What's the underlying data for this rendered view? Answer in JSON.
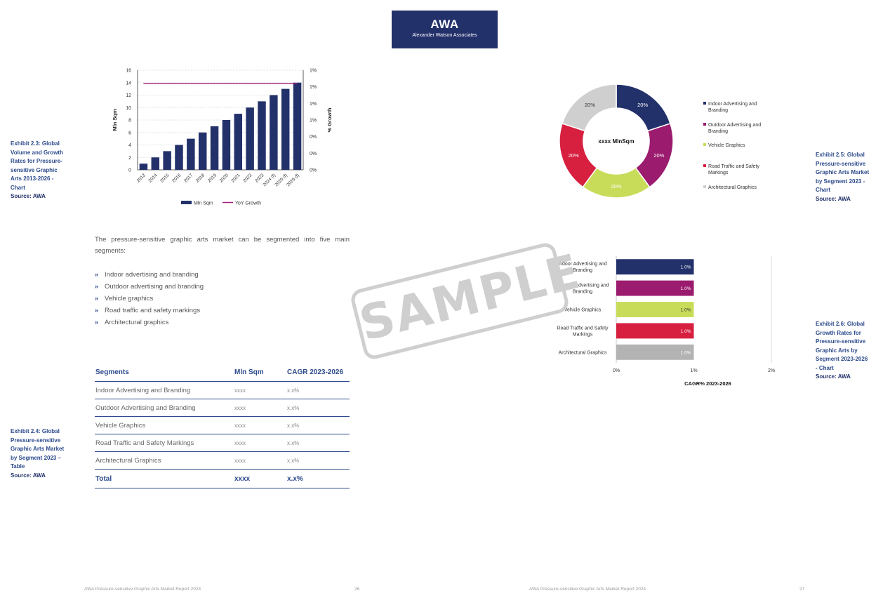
{
  "logo": {
    "title": "AWA",
    "subtitle": "Alexander Watson Associates"
  },
  "exhibit_23": {
    "caption_lines": [
      "Exhibit 2.3: Global",
      "Volume and Growth",
      "Rates for Pressure-",
      "sensitive Graphic",
      "Arts 2013-2026 -",
      "Chart"
    ],
    "source": "Source: AWA"
  },
  "exhibit_24": {
    "caption_lines": [
      "Exhibit 2.4: Global",
      "Pressure-sensitive",
      "Graphic Arts Market",
      "by Segment 2023 –",
      "Table"
    ],
    "source": "Source: AWA"
  },
  "exhibit_25": {
    "caption_lines": [
      "Exhibit 2.5: Global",
      "Pressure-sensitive",
      "Graphic Arts Market",
      "by Segment 2023 -",
      "Chart"
    ],
    "source": "Source: AWA"
  },
  "exhibit_26": {
    "caption_lines": [
      "Exhibit 2.6: Global",
      "Growth Rates for",
      "Pressure-sensitive",
      "Graphic Arts by",
      "Segment 2023-2026",
      "- Chart"
    ],
    "source": "Source: AWA"
  },
  "intro_text": "The pressure-sensitive graphic arts market can be segmented into five main segments:",
  "bullet_marker": "»",
  "bullets": [
    "Indoor advertising and branding",
    "Outdoor advertising and branding",
    "Vehicle graphics",
    "Road traffic and safety markings",
    "Architectural graphics"
  ],
  "table": {
    "headers": [
      "Segments",
      "Mln Sqm",
      "CAGR 2023-2026"
    ],
    "rows": [
      [
        "Indoor Advertising and Branding",
        "xxxx",
        "x.x%"
      ],
      [
        "Outdoor Advertising and Branding",
        "xxxx",
        "x.x%"
      ],
      [
        "Vehicle Graphics",
        "xxxx",
        "x.x%"
      ],
      [
        "Road Traffic and Safety Markings",
        "xxxx",
        "x.x%"
      ],
      [
        "Architectural Graphics",
        "xxxx",
        "x.x%"
      ]
    ],
    "total": [
      "Total",
      "xxxx",
      "x.x%"
    ]
  },
  "watermark": "SAMPLE",
  "footer": {
    "left_text": "AWA Pressure-sensitive Graphic Arts Market Report 2024",
    "left_page": "26",
    "right_text": "AWA Pressure-sensitive Graphic Arts Market Report 2024",
    "right_page": "27"
  },
  "colors": {
    "navy": "#23316b",
    "purple": "#9b1b6e",
    "lime": "#c9dc5a",
    "red": "#d71f3f",
    "grey": "#cfcfcf",
    "bar_grey": "#b3b3b3",
    "line": "#a3207a",
    "caption_blue": "#2c4a8c"
  },
  "chart_data": [
    {
      "type": "bar",
      "categories": [
        "2013",
        "2014",
        "2015",
        "2016",
        "2017",
        "2018",
        "2019",
        "2020",
        "2021",
        "2022",
        "2023",
        "2024 (f)",
        "2025 (f)",
        "2026 (f)"
      ],
      "series": [
        {
          "name": "Mln Sqm",
          "type": "bar",
          "values": [
            1,
            2,
            3,
            4,
            5,
            6,
            7,
            8,
            9,
            10,
            11,
            12,
            13,
            14
          ]
        },
        {
          "name": "YoY Growth",
          "type": "line",
          "axis": "right",
          "values": [
            1,
            1,
            1,
            1,
            1,
            1,
            1,
            1,
            1,
            1,
            1,
            1,
            1,
            1
          ]
        }
      ],
      "ylabel": "Mln Sqm",
      "ylabel_right": "% Growth",
      "ylim": [
        0,
        16
      ],
      "y_ticks": [
        "0",
        "2",
        "4",
        "6",
        "8",
        "10",
        "12",
        "14",
        "16"
      ],
      "y_right_ticks": [
        "0%",
        "0%",
        "0%",
        "1%",
        "1%",
        "1%",
        "1%"
      ],
      "legend_position": "bottom",
      "grid": true
    },
    {
      "type": "pie",
      "center_label": "xxxx MlnSqm",
      "categories": [
        "Indoor Advertising and Branding",
        "Outdoor Advertising and Branding",
        "Vehicle Graphics",
        "Road Traffic and Safety Markings",
        "Architectural Graphics"
      ],
      "values": [
        20,
        20,
        20,
        20,
        20
      ],
      "labels": [
        "20%",
        "20%",
        "20%",
        "20%",
        "20%"
      ],
      "legend_position": "right"
    },
    {
      "type": "bar",
      "orientation": "horizontal",
      "categories": [
        "Indoor Advertising and Branding",
        "Outdoor Advertising and Branding",
        "Vehicle Graphics",
        "Road Traffic and Safety Markings",
        "Architectural Graphics"
      ],
      "values": [
        1.0,
        1.0,
        1.0,
        1.0,
        1.0
      ],
      "labels": [
        "1.0%",
        "1.0%",
        "1.0%",
        "1.0%",
        "1.0%"
      ],
      "xlabel": "CAGR% 2023-2026",
      "xlim": [
        0,
        2
      ],
      "x_ticks": [
        "0%",
        "1%",
        "2%"
      ]
    }
  ]
}
